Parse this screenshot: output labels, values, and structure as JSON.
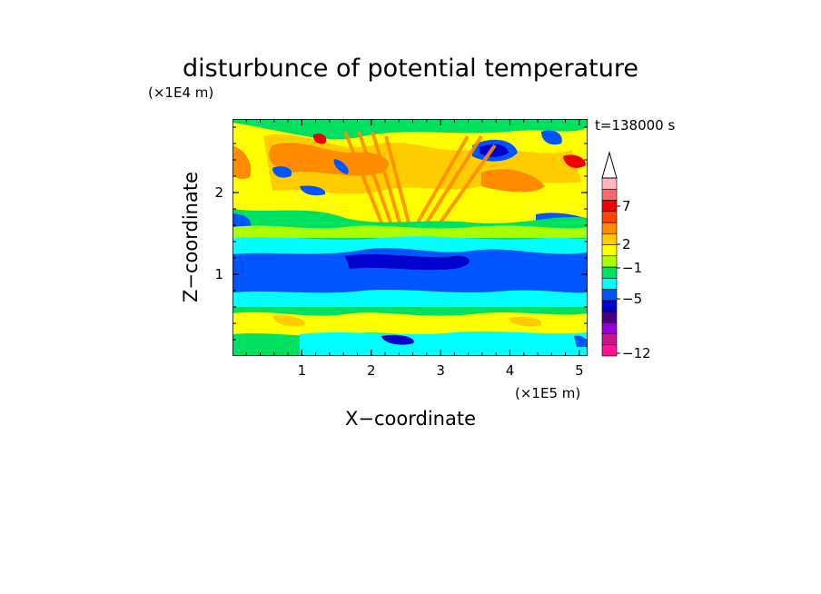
{
  "chart_data": {
    "type": "heatmap",
    "title": "disturbunce of potential temperature",
    "time_label": "t=138000 s",
    "xlabel": "X−coordinate",
    "ylabel": "Z−coordinate",
    "x_unit_label": "(×1E5 m)",
    "y_unit_label": "(×1E4 m)",
    "xlim": [
      0,
      5.12
    ],
    "ylim": [
      0,
      2.9
    ],
    "x_ticks": [
      "1",
      "2",
      "3",
      "4",
      "5"
    ],
    "y_ticks": [
      "1",
      "2"
    ],
    "colorbar": {
      "labels": [
        "7",
        "2",
        "−1",
        "−5",
        "−12"
      ],
      "extend": "max",
      "colors": [
        "#ff1493",
        "#c71585",
        "#9400d3",
        "#4b0082",
        "#0000cd",
        "#0055ff",
        "#00ffff",
        "#00e060",
        "#aaff00",
        "#ffff00",
        "#ffcc00",
        "#ff8c00",
        "#ff4500",
        "#ee0000",
        "#ff6b6b",
        "#ffb6c1"
      ]
    },
    "features": [
      {
        "z": 0.15,
        "level": -1
      },
      {
        "z": 0.45,
        "level": 3
      },
      {
        "z": 0.7,
        "level": 0
      },
      {
        "z": 1.0,
        "level": -5
      },
      {
        "z": 1.3,
        "level": -1
      },
      {
        "z": 1.6,
        "level": 1
      },
      {
        "z": 1.85,
        "level": 2
      },
      {
        "z": 2.2,
        "level": 1
      },
      {
        "z": 2.6,
        "level": 3
      }
    ]
  }
}
